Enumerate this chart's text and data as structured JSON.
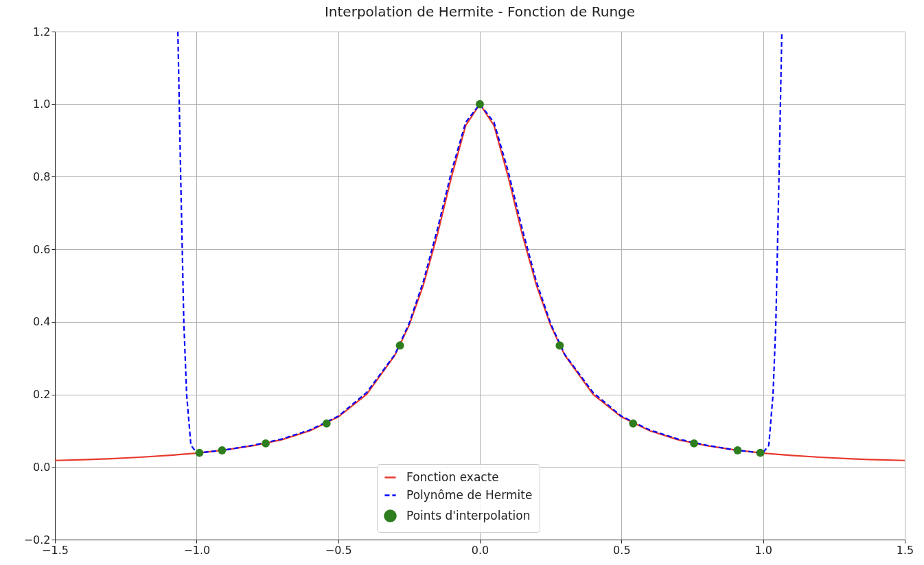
{
  "chart_data": {
    "type": "line",
    "title": "Interpolation de Hermite - Fonction de Runge",
    "xlim": [
      -1.5,
      1.5
    ],
    "ylim": [
      -0.2,
      1.2
    ],
    "xticks": [
      {
        "value": -1.5,
        "label": "−1.5"
      },
      {
        "value": -1.0,
        "label": "−1.0"
      },
      {
        "value": -0.5,
        "label": "−0.5"
      },
      {
        "value": 0,
        "label": "0.0"
      },
      {
        "value": 0.5,
        "label": "0.5"
      },
      {
        "value": 1.0,
        "label": "1.0"
      },
      {
        "value": 1.5,
        "label": "1.5"
      }
    ],
    "yticks": [
      {
        "value": -0.2,
        "label": "−0.2"
      },
      {
        "value": 0,
        "label": "0.0"
      },
      {
        "value": 0.2,
        "label": "0.2"
      },
      {
        "value": 0.4,
        "label": "0.4"
      },
      {
        "value": 0.6,
        "label": "0.6"
      },
      {
        "value": 0.8,
        "label": "0.8"
      },
      {
        "value": 1.0,
        "label": "1.0"
      },
      {
        "value": 1.2,
        "label": "1.2"
      }
    ],
    "grid": true,
    "legend": "bottom",
    "series": [
      {
        "name": "Fonction exacte",
        "line_style": "solid",
        "color": "#e8392d",
        "x": [
          -1.5,
          -1.4,
          -1.3,
          -1.2,
          -1.1,
          -1.0,
          -0.9,
          -0.8,
          -0.7,
          -0.6,
          -0.5,
          -0.4,
          -0.3,
          -0.25,
          -0.2,
          -0.15,
          -0.1,
          -0.05,
          0,
          0.05,
          0.1,
          0.15,
          0.2,
          0.25,
          0.3,
          0.4,
          0.5,
          0.6,
          0.7,
          0.8,
          0.9,
          1.0,
          1.1,
          1.2,
          1.3,
          1.4,
          1.5
        ],
        "values": [
          0.018,
          0.02,
          0.023,
          0.027,
          0.032,
          0.038,
          0.047,
          0.059,
          0.075,
          0.1,
          0.138,
          0.2,
          0.308,
          0.39,
          0.5,
          0.64,
          0.8,
          0.941,
          1.0,
          0.941,
          0.8,
          0.64,
          0.5,
          0.39,
          0.308,
          0.2,
          0.138,
          0.1,
          0.075,
          0.059,
          0.047,
          0.038,
          0.032,
          0.027,
          0.023,
          0.02,
          0.018
        ]
      },
      {
        "name": "Polynôme de Hermite",
        "line_style": "dashed",
        "color": "#0000ff",
        "x": [
          -1.066,
          -1.056,
          -1.045,
          -1.035,
          -1.02,
          -1.0,
          -0.99,
          -0.9,
          -0.8,
          -0.7,
          -0.6,
          -0.5,
          -0.4,
          -0.3,
          -0.25,
          -0.2,
          -0.15,
          -0.1,
          -0.05,
          0,
          0.05,
          0.1,
          0.15,
          0.2,
          0.25,
          0.3,
          0.4,
          0.5,
          0.6,
          0.7,
          0.8,
          0.9,
          0.99,
          1.0,
          1.02,
          1.035,
          1.045,
          1.056,
          1.066
        ],
        "values": [
          1.2,
          0.8,
          0.4,
          0.2,
          0.06,
          0.04,
          0.039,
          0.047,
          0.06,
          0.077,
          0.102,
          0.14,
          0.205,
          0.31,
          0.395,
          0.51,
          0.655,
          0.815,
          0.95,
          1.0,
          0.95,
          0.815,
          0.655,
          0.51,
          0.395,
          0.31,
          0.205,
          0.14,
          0.102,
          0.077,
          0.06,
          0.047,
          0.039,
          0.04,
          0.06,
          0.2,
          0.4,
          0.8,
          1.2
        ]
      },
      {
        "name": "Points d'interpolation",
        "type": "scatter",
        "marker": "circle",
        "color": "#2e7d1e",
        "x": [
          -0.99,
          -0.91,
          -0.756,
          -0.541,
          -0.282,
          0,
          0.282,
          0.541,
          0.756,
          0.91,
          0.99
        ],
        "values": [
          0.039,
          0.046,
          0.065,
          0.12,
          0.335,
          1.0,
          0.335,
          0.12,
          0.065,
          0.046,
          0.039
        ]
      }
    ]
  }
}
